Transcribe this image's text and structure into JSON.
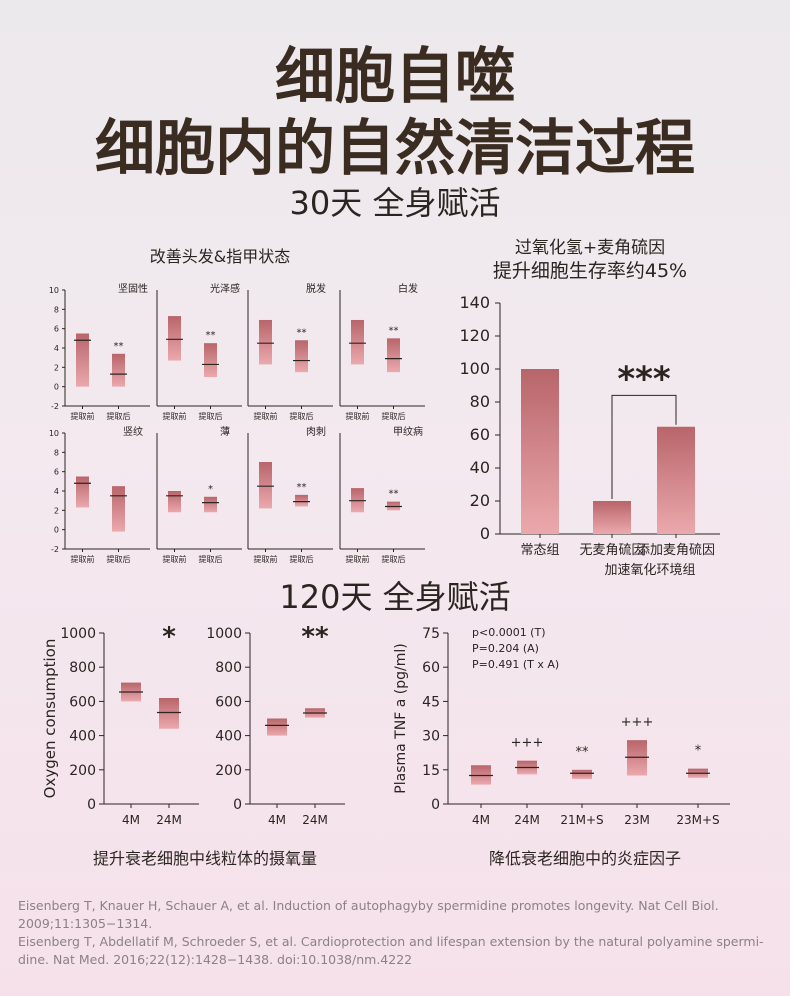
{
  "header": {
    "title_line1": "细胞自噬",
    "title_line2": "细胞内的自然清洁过程",
    "section1": "30天 全身赋活",
    "section2": "120天 全身赋活"
  },
  "captions": {
    "small_grid": "改善头发&指甲状态",
    "right_title_line1": "过氧化氢+麦角硫因",
    "right_title_line2": "提升细胞生存率约45%",
    "oxygen": "提升衰老细胞中线粒体的摄氧量",
    "tnf": "降低衰老细胞中的炎症因子"
  },
  "references": [
    "Eisenberg T, Knauer H, Schauer A, et al. Induction of autophagyby spermidine promotes longevity. Nat Cell Biol. 2009;11:1305−1314.",
    "Eisenberg T, Abdellatif M, Schroeder S, et al. Cardioprotection and lifespan extension by the natural polyamine spermi-dine. Nat Med. 2016;22(12):1428−1438. doi:10.1038/nm.4222"
  ],
  "colors": {
    "bar_top": "#b8656a",
    "bar_bottom": "#eba9ad",
    "axis": "#2b2522",
    "title": "#3a2c20"
  },
  "chart_data": [
    {
      "type": "bar",
      "id": "hair-nail-grid",
      "ylim": [
        -2,
        10
      ],
      "yticks": [
        -2,
        0,
        2,
        4,
        6,
        8,
        10
      ],
      "categories": [
        "提取前",
        "提取后"
      ],
      "panels": [
        {
          "title": "坚固性",
          "boxes": [
            {
              "low": 0,
              "high": 5.5,
              "median": 4.8
            },
            {
              "low": 0,
              "high": 3.4,
              "median": 1.3
            }
          ],
          "marks": [
            "",
            "**"
          ]
        },
        {
          "title": "光泽感",
          "boxes": [
            {
              "low": 2.7,
              "high": 7.3,
              "median": 4.9
            },
            {
              "low": 1.0,
              "high": 4.5,
              "median": 2.3
            }
          ],
          "marks": [
            "",
            "**"
          ]
        },
        {
          "title": "脱发",
          "boxes": [
            {
              "low": 2.3,
              "high": 6.9,
              "median": 4.5
            },
            {
              "low": 1.5,
              "high": 4.8,
              "median": 2.7
            }
          ],
          "marks": [
            "",
            "**"
          ]
        },
        {
          "title": "白发",
          "boxes": [
            {
              "low": 2.3,
              "high": 6.9,
              "median": 4.5
            },
            {
              "low": 1.5,
              "high": 5.0,
              "median": 2.9
            }
          ],
          "marks": [
            "",
            "**"
          ]
        },
        {
          "title": "竖纹",
          "boxes": [
            {
              "low": 2.3,
              "high": 5.5,
              "median": 4.8
            },
            {
              "low": -0.2,
              "high": 4.5,
              "median": 3.5
            }
          ],
          "marks": [
            "",
            ""
          ]
        },
        {
          "title": "薄",
          "boxes": [
            {
              "low": 1.8,
              "high": 4.0,
              "median": 3.5
            },
            {
              "low": 1.8,
              "high": 3.4,
              "median": 2.8
            }
          ],
          "marks": [
            "",
            "*"
          ]
        },
        {
          "title": "肉刺",
          "boxes": [
            {
              "low": 2.2,
              "high": 7.0,
              "median": 4.5
            },
            {
              "low": 2.4,
              "high": 3.6,
              "median": 2.9
            }
          ],
          "marks": [
            "",
            "**"
          ]
        },
        {
          "title": "甲纹病",
          "boxes": [
            {
              "low": 1.8,
              "high": 4.3,
              "median": 3.0
            },
            {
              "low": 2.0,
              "high": 2.9,
              "median": 2.4
            }
          ],
          "marks": [
            "",
            "**"
          ]
        }
      ]
    },
    {
      "type": "bar",
      "id": "cell-survival",
      "categories": [
        "常态组",
        "无麦角硫因",
        "添加麦角硫因"
      ],
      "category_sub": [
        "",
        "加速氧化环境组",
        ""
      ],
      "values": [
        100,
        20,
        65
      ],
      "ylim": [
        0,
        140
      ],
      "yticks": [
        0,
        20,
        40,
        60,
        80,
        100,
        120,
        140
      ],
      "significance": "***"
    },
    {
      "type": "bar",
      "id": "oxygen-consumption",
      "ylabel": "Oxygen consumption",
      "ylim": [
        0,
        1000
      ],
      "yticks": [
        0,
        200,
        400,
        600,
        800,
        1000
      ],
      "panels": [
        {
          "categories": [
            "4M",
            "24M"
          ],
          "boxes": [
            {
              "low": 600,
              "high": 710,
              "median": 655
            },
            {
              "low": 440,
              "high": 620,
              "median": 535
            }
          ],
          "mark": "*"
        },
        {
          "categories": [
            "4M",
            "24M"
          ],
          "boxes": [
            {
              "low": 400,
              "high": 500,
              "median": 460
            },
            {
              "low": 505,
              "high": 560,
              "median": 532
            }
          ],
          "mark": "**"
        }
      ]
    },
    {
      "type": "bar",
      "id": "plasma-tnf",
      "ylabel": "Plasma TNF a (pg/ml)",
      "ylim": [
        0,
        75
      ],
      "yticks": [
        0,
        15,
        30,
        45,
        60,
        75
      ],
      "categories": [
        "4M",
        "24M",
        "21M+S",
        "23M",
        "23M+S"
      ],
      "boxes": [
        {
          "low": 8.5,
          "high": 17.0,
          "median": 12.5
        },
        {
          "low": 13.0,
          "high": 19.0,
          "median": 16.0
        },
        {
          "low": 11.0,
          "high": 15.0,
          "median": 13.5
        },
        {
          "low": 12.5,
          "high": 28.0,
          "median": 20.5
        },
        {
          "low": 11.5,
          "high": 15.5,
          "median": 13.5
        }
      ],
      "marks": [
        "",
        "+++",
        "**",
        "+++",
        "*"
      ],
      "stats": [
        "p<0.0001 (T)",
        "P=0.204 (A)",
        "P=0.491 (T x A)"
      ]
    }
  ]
}
